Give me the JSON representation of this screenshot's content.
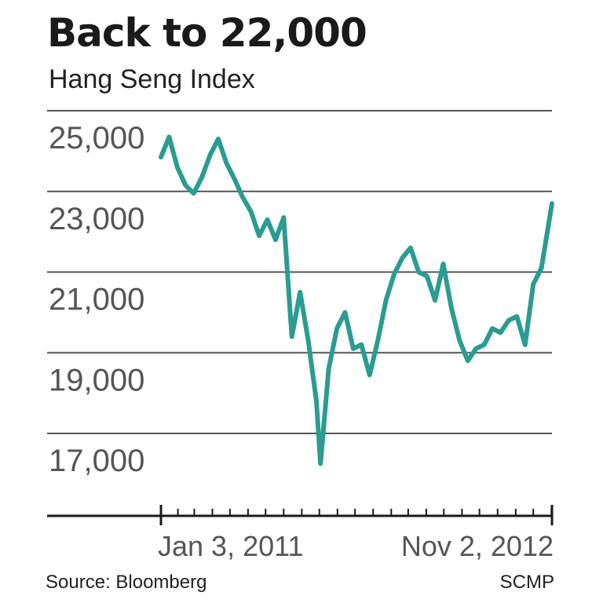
{
  "header": {
    "title": "Back to 22,000",
    "subtitle": "Hang Seng Index"
  },
  "footer": {
    "source": "Source: Bloomberg",
    "credit": "SCMP"
  },
  "colors": {
    "line": "#2a9c92",
    "grid": "#555555",
    "axis": "#1a1a1a",
    "tick_label": "#555555"
  },
  "chart_data": {
    "type": "line",
    "title": "Back to 22,000",
    "subtitle": "Hang Seng Index",
    "xlabel": "",
    "ylabel": "",
    "ylim": [
      15500,
      25500
    ],
    "yticks": [
      25000,
      23000,
      21000,
      19000,
      17000
    ],
    "ytick_labels": [
      "25,000",
      "23,000",
      "21,000",
      "19,000",
      "17,000"
    ],
    "xlim": [
      "2011-01-03",
      "2012-11-02"
    ],
    "xtick_labels": [
      "Jan 3, 2011",
      "Nov 2, 2012"
    ],
    "grid": true,
    "series": [
      {
        "x": [
          "2011-01-03",
          "2011-01-17",
          "2011-01-31",
          "2011-02-14",
          "2011-02-28",
          "2011-03-14",
          "2011-03-28",
          "2011-04-11",
          "2011-04-25",
          "2011-05-09",
          "2011-05-23",
          "2011-06-06",
          "2011-06-20",
          "2011-07-04",
          "2011-07-18",
          "2011-08-01",
          "2011-08-15",
          "2011-08-29",
          "2011-09-12",
          "2011-09-26",
          "2011-10-03",
          "2011-10-17",
          "2011-10-31",
          "2011-11-14",
          "2011-11-28",
          "2011-12-12",
          "2011-12-26",
          "2012-01-09",
          "2012-01-23",
          "2012-02-06",
          "2012-02-20",
          "2012-03-05",
          "2012-03-19",
          "2012-04-02",
          "2012-04-16",
          "2012-04-30",
          "2012-05-14",
          "2012-05-28",
          "2012-06-11",
          "2012-06-25",
          "2012-07-09",
          "2012-07-23",
          "2012-08-06",
          "2012-08-20",
          "2012-09-03",
          "2012-09-17",
          "2012-10-01",
          "2012-10-15",
          "2012-11-02"
        ],
        "values": [
          23850,
          24350,
          23600,
          23150,
          22950,
          23350,
          23900,
          24300,
          23700,
          23300,
          22850,
          22500,
          21900,
          22300,
          21800,
          22350,
          19400,
          20500,
          19300,
          17800,
          16250,
          18600,
          19600,
          20000,
          19100,
          19200,
          18450,
          19300,
          20300,
          20950,
          21350,
          21600,
          21000,
          20900,
          20300,
          21200,
          20100,
          19300,
          18800,
          19100,
          19200,
          19600,
          19500,
          19800,
          19900,
          19200,
          20700,
          21100,
          22700
        ]
      }
    ]
  }
}
